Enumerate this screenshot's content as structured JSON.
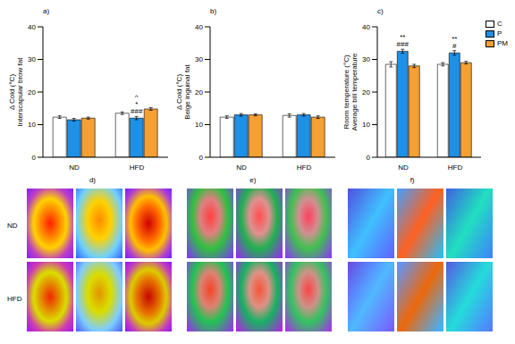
{
  "chart_data": [
    {
      "type": "bar",
      "title": "a)",
      "y_label": [
        "Δ Cold (°C)",
        "Interscapular brow fat"
      ],
      "categories": [
        "ND",
        "HFD"
      ],
      "series": [
        {
          "name": "C",
          "color": "#ffffff",
          "values": [
            12.3,
            13.5
          ],
          "errors": [
            0.4,
            0.4
          ]
        },
        {
          "name": "P",
          "color": "#1e90e6",
          "values": [
            11.5,
            12.0
          ],
          "errors": [
            0.4,
            0.5
          ]
        },
        {
          "name": "PM",
          "color": "#f5a033",
          "values": [
            12.0,
            14.8
          ],
          "errors": [
            0.3,
            0.4
          ]
        }
      ],
      "ylim": [
        0,
        40
      ],
      "yticks": [
        0,
        10,
        20,
        30,
        40
      ],
      "annotations": [
        {
          "category": "HFD",
          "series": "P",
          "lines": [
            "^",
            "*",
            "###"
          ]
        }
      ]
    },
    {
      "type": "bar",
      "title": "b)",
      "y_label": [
        "Δ Cold (°C)",
        "Beige inguinal fat"
      ],
      "categories": [
        "ND",
        "HFD"
      ],
      "series": [
        {
          "name": "C",
          "color": "#ffffff",
          "values": [
            12.3,
            12.8
          ],
          "errors": [
            0.4,
            0.5
          ]
        },
        {
          "name": "P",
          "color": "#1e90e6",
          "values": [
            13.0,
            13.0
          ],
          "errors": [
            0.4,
            0.4
          ]
        },
        {
          "name": "PM",
          "color": "#f5a033",
          "values": [
            13.0,
            12.3
          ],
          "errors": [
            0.3,
            0.4
          ]
        }
      ],
      "ylim": [
        0,
        40
      ],
      "yticks": [
        0,
        10,
        20,
        30,
        40
      ]
    },
    {
      "type": "bar",
      "title": "c)",
      "y_label": [
        "Room temperature (°C)",
        "Average bill temperature"
      ],
      "categories": [
        "ND",
        "HFD"
      ],
      "series": [
        {
          "name": "C",
          "color": "#ffffff",
          "values": [
            28.5,
            28.5
          ],
          "errors": [
            0.8,
            0.5
          ]
        },
        {
          "name": "P",
          "color": "#1e90e6",
          "values": [
            32.5,
            32.0
          ],
          "errors": [
            0.6,
            0.7
          ]
        },
        {
          "name": "PM",
          "color": "#f5a033",
          "values": [
            28.0,
            29.0
          ],
          "errors": [
            0.5,
            0.4
          ]
        }
      ],
      "ylim": [
        0,
        40
      ],
      "yticks": [
        0,
        10,
        20,
        30,
        40
      ],
      "legend": "right",
      "annotations": [
        {
          "category": "ND",
          "series": "P",
          "lines": [
            "**",
            "###"
          ]
        },
        {
          "category": "HFD",
          "series": "P",
          "lines": [
            "**",
            "#"
          ]
        }
      ]
    }
  ],
  "image_panels": [
    "d)",
    "e)",
    "f)"
  ],
  "image_rows": [
    "ND",
    "HFD"
  ]
}
